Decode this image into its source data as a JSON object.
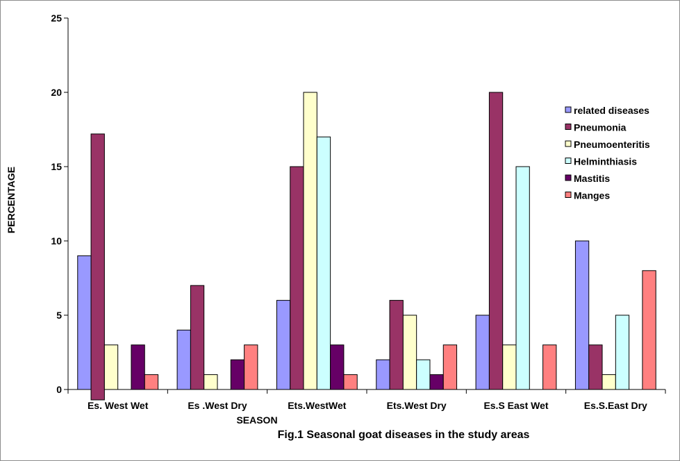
{
  "chart_data": {
    "type": "bar",
    "caption": "Fig.1 Seasonal goat diseases in the study areas",
    "xlabel": "SEASON",
    "ylabel": "PERCENTAGE",
    "ylim": [
      0,
      25
    ],
    "yticks": [
      "0",
      "5",
      "10",
      "15",
      "20",
      "25"
    ],
    "ytick_values": [
      0,
      5,
      10,
      15,
      20,
      25
    ],
    "grid": false,
    "legend_position": "right",
    "categories": [
      "Es. West  Wet",
      "Es .West Dry",
      "Ets.WestWet",
      "Ets.West Dry",
      "Es.S East Wet",
      "Es.S.East Dry"
    ],
    "series": [
      {
        "name": "related diseases",
        "color": "#9999ff",
        "values": [
          9,
          4,
          6,
          2,
          5,
          10
        ]
      },
      {
        "name": "Pneumonia",
        "color": "#993366",
        "values": [
          17.2,
          7,
          15,
          6,
          20,
          3
        ]
      },
      {
        "name": "Pneumoenteritis",
        "color": "#ffffcc",
        "values": [
          3,
          1,
          20,
          5,
          3,
          1
        ]
      },
      {
        "name": "Helminthiasis",
        "color": "#ccffff",
        "values": [
          0,
          0,
          17,
          2,
          15,
          5
        ]
      },
      {
        "name": "Mastitis",
        "color": "#660066",
        "values": [
          3,
          2,
          3,
          1,
          0,
          0
        ]
      },
      {
        "name": "Manges",
        "color": "#ff8080",
        "values": [
          1,
          3,
          1,
          3,
          3,
          8
        ]
      }
    ]
  }
}
